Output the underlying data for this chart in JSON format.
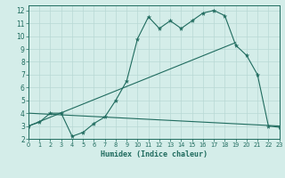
{
  "xlabel": "Humidex (Indice chaleur)",
  "background_color": "#d4ede9",
  "grid_color": "#b8d8d4",
  "line_color": "#1f6b5e",
  "xlim": [
    0,
    23
  ],
  "ylim": [
    2,
    12.4
  ],
  "xticks": [
    0,
    1,
    2,
    3,
    4,
    5,
    6,
    7,
    8,
    9,
    10,
    11,
    12,
    13,
    14,
    15,
    16,
    17,
    18,
    19,
    20,
    21,
    22,
    23
  ],
  "yticks": [
    2,
    3,
    4,
    5,
    6,
    7,
    8,
    9,
    10,
    11,
    12
  ],
  "line1_x": [
    0,
    1,
    2,
    3,
    4,
    5,
    6,
    7,
    8,
    9,
    10,
    11,
    12,
    13,
    14,
    15,
    16,
    17,
    18,
    19,
    20,
    21,
    22,
    23
  ],
  "line1_y": [
    3.0,
    3.3,
    4.0,
    4.0,
    2.2,
    2.5,
    3.2,
    3.7,
    5.0,
    6.5,
    9.8,
    11.5,
    10.6,
    11.2,
    10.6,
    11.2,
    11.8,
    12.0,
    11.6,
    9.3,
    8.5,
    7.0,
    3.0,
    2.9
  ],
  "line2_x": [
    0,
    19
  ],
  "line2_y": [
    3.0,
    9.5
  ],
  "line3_x": [
    0,
    23
  ],
  "line3_y": [
    4.0,
    3.0
  ],
  "figwidth": 3.2,
  "figheight": 2.0,
  "dpi": 100
}
